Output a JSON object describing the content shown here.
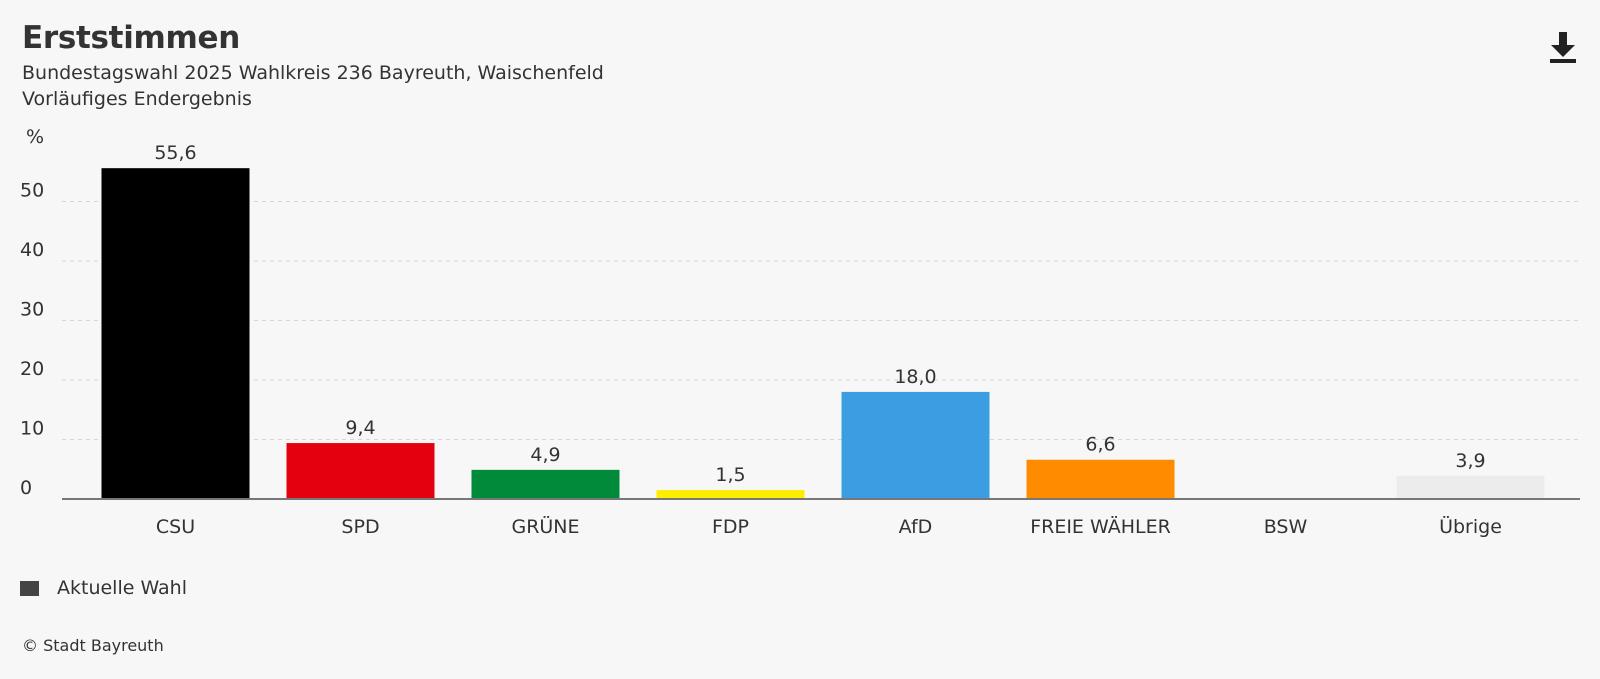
{
  "header": {
    "title": "Erststimmen",
    "subtitle": "Bundestagswahl 2025 Wahlkreis 236 Bayreuth, Waischenfeld",
    "status": "Vorläufiges Endergebnis"
  },
  "toolbar": {
    "download_icon": "download-icon"
  },
  "chart_data": {
    "type": "bar",
    "ylabel": "%",
    "xlabel": "",
    "ylim": [
      0,
      60
    ],
    "yticks": [
      "0",
      "10",
      "20",
      "30",
      "40",
      "50"
    ],
    "grid": true,
    "categories": [
      "CSU",
      "SPD",
      "GRÜNE",
      "FDP",
      "AfD",
      "FREIE WÄHLER",
      "BSW",
      "Übrige"
    ],
    "values": [
      55.6,
      9.4,
      4.9,
      1.5,
      18.0,
      6.6,
      null,
      3.9
    ],
    "value_labels": [
      "55,6",
      "9,4",
      "4,9",
      "1,5",
      "18,0",
      "6,6",
      "",
      "3,9"
    ],
    "colors": [
      "#000000",
      "#e3000f",
      "#008a3a",
      "#ffed00",
      "#3c9de3",
      "#ff8c00",
      "#7a1e5d",
      "#ececec"
    ],
    "series": [
      {
        "name": "Aktuelle Wahl",
        "values": [
          55.6,
          9.4,
          4.9,
          1.5,
          18.0,
          6.6,
          null,
          3.9
        ]
      }
    ],
    "legend_position": "bottom-left"
  },
  "legend": {
    "items": [
      {
        "label": "Aktuelle Wahl",
        "color": "#444444"
      }
    ]
  },
  "footer": {
    "credit": "© Stadt Bayreuth"
  }
}
